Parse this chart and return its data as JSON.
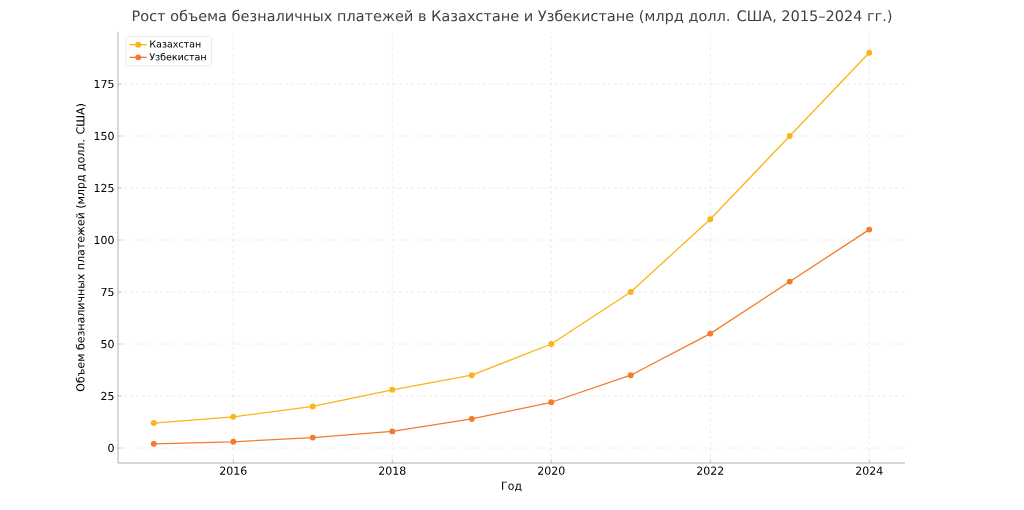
{
  "chart_data": {
    "type": "line",
    "title": "Рост объема безналичных платежей в Казахстане и Узбекистане (млрд долл. США, 2015–2024 гг.)",
    "xlabel": "Год",
    "ylabel": "Объем безналичных платежей (млрд долл. США)",
    "x": [
      2015,
      2016,
      2017,
      2018,
      2019,
      2020,
      2021,
      2022,
      2023,
      2024
    ],
    "series": [
      {
        "name": "Казахстан",
        "color": "#fbb418",
        "values": [
          12,
          15,
          20,
          28,
          35,
          50,
          75,
          110,
          150,
          190
        ]
      },
      {
        "name": "Узбекистан",
        "color": "#f47a2c",
        "values": [
          2,
          3,
          5,
          8,
          14,
          22,
          35,
          55,
          80,
          105
        ]
      }
    ],
    "xlim": [
      2014.55,
      2024.45
    ],
    "ylim": [
      -7.2,
      200
    ],
    "xticks": [
      2016,
      2018,
      2020,
      2022,
      2024
    ],
    "yticks": [
      0,
      25,
      50,
      75,
      100,
      125,
      150,
      175
    ],
    "grid": true,
    "legend": "top left",
    "marker": "circle",
    "line_style": "solid"
  }
}
